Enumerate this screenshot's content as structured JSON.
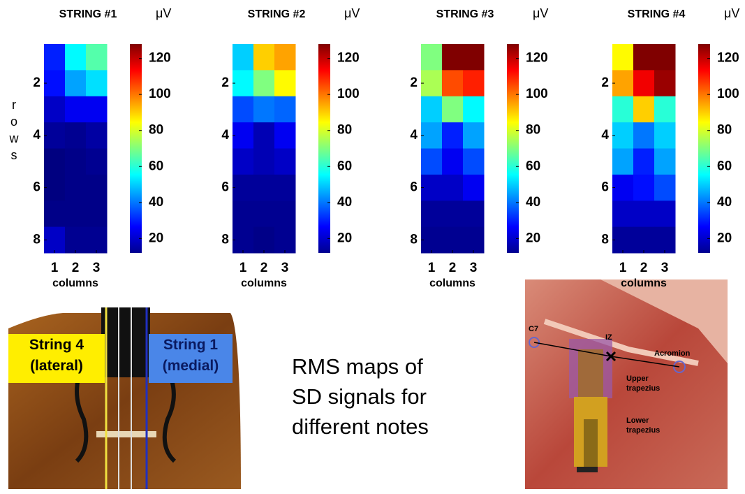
{
  "chart_data": [
    {
      "type": "heatmap",
      "title": "STRING #1",
      "unit": "μV",
      "ylabel": "rows",
      "xlabel": "columns",
      "xticks": [
        1,
        2,
        3
      ],
      "yticks": [
        2,
        4,
        6,
        8
      ],
      "rows": 8,
      "columns": 3,
      "clim": [
        12,
        128
      ],
      "cticks": [
        20,
        40,
        60,
        80,
        100,
        120
      ],
      "z": [
        [
          30,
          55,
          65
        ],
        [
          28,
          45,
          52
        ],
        [
          20,
          25,
          25
        ],
        [
          15,
          14,
          16
        ],
        [
          12,
          13,
          14
        ],
        [
          12,
          13,
          13
        ],
        [
          13,
          13,
          13
        ],
        [
          20,
          14,
          14
        ]
      ]
    },
    {
      "type": "heatmap",
      "title": "STRING #2",
      "unit": "μV",
      "xlabel": "columns",
      "xticks": [
        1,
        2,
        3
      ],
      "yticks": [
        2,
        4,
        6,
        8
      ],
      "rows": 8,
      "columns": 3,
      "clim": [
        12,
        128
      ],
      "cticks": [
        20,
        40,
        60,
        80,
        100,
        120
      ],
      "z": [
        [
          50,
          90,
          95
        ],
        [
          55,
          70,
          85
        ],
        [
          35,
          40,
          38
        ],
        [
          25,
          18,
          25
        ],
        [
          20,
          18,
          20
        ],
        [
          15,
          15,
          15
        ],
        [
          14,
          14,
          14
        ],
        [
          14,
          13,
          14
        ]
      ]
    },
    {
      "type": "heatmap",
      "title": "STRING #3",
      "unit": "μV",
      "xlabel": "columns",
      "xticks": [
        1,
        2,
        3
      ],
      "yticks": [
        2,
        4,
        6,
        8
      ],
      "rows": 8,
      "columns": 3,
      "clim": [
        12,
        128
      ],
      "cticks": [
        20,
        40,
        60,
        80,
        100,
        120
      ],
      "z": [
        [
          70,
          128,
          128
        ],
        [
          75,
          105,
          110
        ],
        [
          50,
          70,
          55
        ],
        [
          45,
          30,
          45
        ],
        [
          35,
          25,
          35
        ],
        [
          20,
          20,
          25
        ],
        [
          15,
          15,
          15
        ],
        [
          14,
          14,
          14
        ]
      ]
    },
    {
      "type": "heatmap",
      "title": "STRING #4",
      "unit": "μV",
      "xlabel": "columns",
      "xticks": [
        1,
        2,
        3
      ],
      "yticks": [
        2,
        4,
        6,
        8
      ],
      "rows": 8,
      "columns": 3,
      "clim": [
        12,
        128
      ],
      "cticks": [
        20,
        40,
        60,
        80,
        100,
        120
      ],
      "z": [
        [
          85,
          128,
          128
        ],
        [
          95,
          115,
          125
        ],
        [
          60,
          90,
          60
        ],
        [
          50,
          40,
          50
        ],
        [
          45,
          30,
          45
        ],
        [
          25,
          28,
          35
        ],
        [
          20,
          20,
          20
        ],
        [
          15,
          15,
          15
        ]
      ]
    }
  ],
  "violin_labels": {
    "string4": [
      "String 4",
      "(lateral)"
    ],
    "string1": [
      "String 1",
      "(medial)"
    ]
  },
  "caption": [
    "RMS maps of",
    "SD signals for",
    "different notes"
  ],
  "anatomy_labels": {
    "c7": "C7",
    "iz": "IZ",
    "acromion": "Acromion",
    "upper": [
      "Upper",
      "trapezius"
    ],
    "lower": [
      "Lower",
      "trapezius"
    ]
  }
}
